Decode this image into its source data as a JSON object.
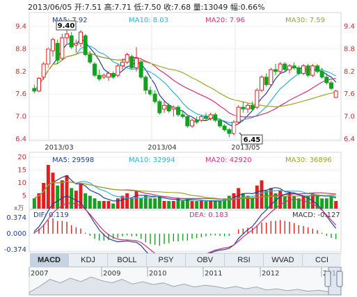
{
  "header": {
    "text": "2013/06/05 开:7.51  高:7.71  低:7.50  收:7.68  量:13049  幅:0.66%"
  },
  "colors": {
    "up": "#e02020",
    "down": "#16a020",
    "ma5": "#1f3f8f",
    "ma10": "#2bb3d6",
    "ma20": "#d0307a",
    "ma30": "#9aa62a",
    "dif": "#1f3f8f",
    "dea": "#d0307a"
  },
  "price": {
    "legend": [
      {
        "key": "ma5",
        "text": "MA5: 7.92"
      },
      {
        "key": "ma10",
        "text": "MA10: 8.03"
      },
      {
        "key": "ma20",
        "text": "MA20: 7.96"
      },
      {
        "key": "ma30",
        "text": "MA30: 7.59"
      }
    ],
    "y_ticks": [
      "9.4",
      "8.8",
      "8.2",
      "7.6",
      "7.0",
      "6.4"
    ],
    "x_ticks": [
      "2013/03",
      "2013/04",
      "2013/05"
    ],
    "high_label": "9.40",
    "low_label": "6.45"
  },
  "volume": {
    "legend": [
      {
        "key": "ma5",
        "text": "MA5: 29598"
      },
      {
        "key": "ma10",
        "text": "MA10: 32994"
      },
      {
        "key": "ma20",
        "text": "MA20: 42920"
      },
      {
        "key": "ma30",
        "text": "MA30: 36896"
      }
    ],
    "y_ticks": [
      "20",
      "15",
      "10",
      "5"
    ],
    "unit": "x万"
  },
  "macd": {
    "legend": [
      {
        "key": "dif",
        "text": "DIF: 0.119"
      },
      {
        "key": "dea",
        "text": "DEA: 0.183"
      },
      {
        "key": "macd",
        "text": "MACD: -0.127"
      }
    ],
    "y_ticks": [
      "0.374",
      "0.000",
      "-0.374"
    ]
  },
  "tabs": [
    "MACD",
    "KDJ",
    "BOLL",
    "PSY",
    "OBV",
    "RSI",
    "WVAD",
    "CCI"
  ],
  "timeline": {
    "years": [
      "2007",
      "2009",
      "2010",
      "2011",
      "2012",
      "2013"
    ]
  },
  "chart_data": {
    "type": "candlestick",
    "ylim": [
      6.4,
      9.4
    ],
    "ohlc": [
      [
        7.75,
        7.85,
        7.62,
        7.68
      ],
      [
        7.68,
        8.05,
        7.65,
        8.02
      ],
      [
        8.05,
        8.45,
        7.98,
        8.4
      ],
      [
        8.4,
        8.85,
        8.3,
        8.8
      ],
      [
        8.75,
        9.1,
        8.6,
        9.05
      ],
      [
        8.95,
        9.05,
        8.4,
        8.5
      ],
      [
        8.55,
        9.2,
        8.5,
        9.1
      ],
      [
        9.1,
        9.4,
        8.95,
        9.2
      ],
      [
        9.15,
        9.25,
        8.8,
        8.85
      ],
      [
        8.9,
        9.05,
        8.7,
        8.95
      ],
      [
        8.95,
        9.3,
        8.85,
        9.25
      ],
      [
        9.15,
        9.2,
        8.6,
        8.65
      ],
      [
        8.65,
        8.75,
        8.4,
        8.45
      ],
      [
        8.4,
        8.45,
        8.05,
        8.1
      ],
      [
        8.1,
        8.25,
        7.95,
        8.0
      ],
      [
        8.05,
        8.15,
        8.0,
        8.1
      ],
      [
        8.05,
        8.2,
        7.95,
        8.15
      ],
      [
        8.15,
        8.2,
        8.0,
        8.05
      ],
      [
        8.1,
        8.4,
        8.05,
        8.35
      ],
      [
        8.35,
        8.55,
        8.25,
        8.45
      ],
      [
        8.45,
        8.7,
        8.4,
        8.65
      ],
      [
        8.6,
        8.65,
        8.25,
        8.3
      ],
      [
        8.3,
        8.85,
        8.2,
        8.55
      ],
      [
        8.45,
        8.5,
        8.0,
        8.05
      ],
      [
        8.05,
        8.1,
        7.6,
        7.7
      ],
      [
        7.7,
        7.8,
        7.55,
        7.6
      ],
      [
        7.6,
        7.7,
        7.35,
        7.4
      ],
      [
        7.4,
        7.45,
        7.05,
        7.1
      ],
      [
        7.2,
        7.4,
        7.1,
        7.3
      ],
      [
        7.3,
        7.35,
        7.1,
        7.15
      ],
      [
        7.2,
        7.3,
        7.0,
        7.25
      ],
      [
        7.25,
        7.3,
        7.0,
        7.05
      ],
      [
        7.05,
        7.15,
        6.95,
        7.0
      ],
      [
        7.0,
        7.05,
        6.7,
        6.75
      ],
      [
        6.75,
        6.95,
        6.7,
        6.9
      ],
      [
        6.9,
        7.0,
        6.8,
        6.85
      ],
      [
        6.9,
        7.05,
        6.85,
        7.0
      ],
      [
        7.0,
        7.1,
        6.9,
        6.95
      ],
      [
        6.95,
        7.1,
        6.9,
        7.05
      ],
      [
        7.05,
        7.1,
        6.85,
        6.9
      ],
      [
        6.9,
        6.95,
        6.7,
        6.75
      ],
      [
        6.75,
        6.8,
        6.6,
        6.65
      ],
      [
        6.65,
        6.7,
        6.45,
        6.55
      ],
      [
        6.55,
        6.9,
        6.5,
        6.85
      ],
      [
        6.85,
        7.3,
        6.8,
        7.25
      ],
      [
        7.25,
        7.4,
        7.1,
        7.2
      ],
      [
        7.2,
        7.35,
        7.1,
        7.3
      ],
      [
        7.3,
        7.4,
        7.15,
        7.2
      ],
      [
        7.25,
        7.75,
        7.2,
        7.7
      ],
      [
        7.7,
        8.1,
        7.65,
        8.05
      ],
      [
        8.05,
        8.15,
        7.8,
        7.85
      ],
      [
        7.85,
        8.3,
        7.8,
        8.25
      ],
      [
        8.25,
        8.4,
        8.1,
        8.2
      ],
      [
        8.2,
        8.45,
        8.15,
        8.4
      ],
      [
        8.4,
        8.45,
        8.2,
        8.25
      ],
      [
        8.25,
        8.4,
        8.15,
        8.35
      ],
      [
        8.35,
        8.45,
        8.25,
        8.3
      ],
      [
        8.3,
        8.35,
        8.1,
        8.15
      ],
      [
        8.15,
        8.4,
        8.1,
        8.35
      ],
      [
        8.35,
        8.4,
        8.05,
        8.1
      ],
      [
        8.1,
        8.4,
        8.05,
        8.35
      ],
      [
        8.35,
        8.4,
        8.15,
        8.2
      ],
      [
        8.2,
        8.3,
        8.0,
        8.05
      ],
      [
        8.05,
        8.15,
        7.85,
        7.9
      ],
      [
        7.9,
        7.95,
        7.7,
        7.75
      ],
      [
        7.51,
        7.71,
        7.5,
        7.68
      ]
    ],
    "volume": [
      4,
      6,
      10,
      17,
      14,
      9,
      11,
      13,
      8,
      7,
      10,
      6,
      5,
      4,
      3,
      3,
      3,
      2,
      4,
      5,
      6,
      4,
      7,
      4,
      5,
      4,
      4,
      5,
      3,
      3,
      3,
      4,
      3,
      4,
      3,
      3,
      3,
      3,
      3,
      3,
      3,
      4,
      5,
      6,
      8,
      6,
      5,
      4,
      9,
      11,
      7,
      8,
      6,
      7,
      5,
      6,
      5,
      4,
      5,
      5,
      6,
      5,
      4,
      4,
      5,
      3
    ],
    "macd_hist": [
      0.05,
      0.12,
      0.22,
      0.32,
      0.36,
      0.3,
      0.3,
      0.28,
      0.2,
      0.15,
      0.12,
      0.02,
      -0.05,
      -0.12,
      -0.16,
      -0.16,
      -0.15,
      -0.12,
      -0.1,
      -0.06,
      -0.04,
      -0.06,
      -0.06,
      -0.12,
      -0.2,
      -0.24,
      -0.26,
      -0.28,
      -0.24,
      -0.22,
      -0.18,
      -0.18,
      -0.16,
      -0.16,
      -0.12,
      -0.1,
      -0.08,
      -0.06,
      -0.04,
      -0.04,
      -0.05,
      -0.06,
      -0.05,
      0.0,
      0.1,
      0.12,
      0.14,
      0.14,
      0.2,
      0.26,
      0.26,
      0.3,
      0.3,
      0.32,
      0.3,
      0.28,
      0.25,
      0.2,
      0.18,
      0.15,
      0.12,
      0.08,
      0.02,
      -0.05,
      -0.1,
      -0.127
    ]
  }
}
